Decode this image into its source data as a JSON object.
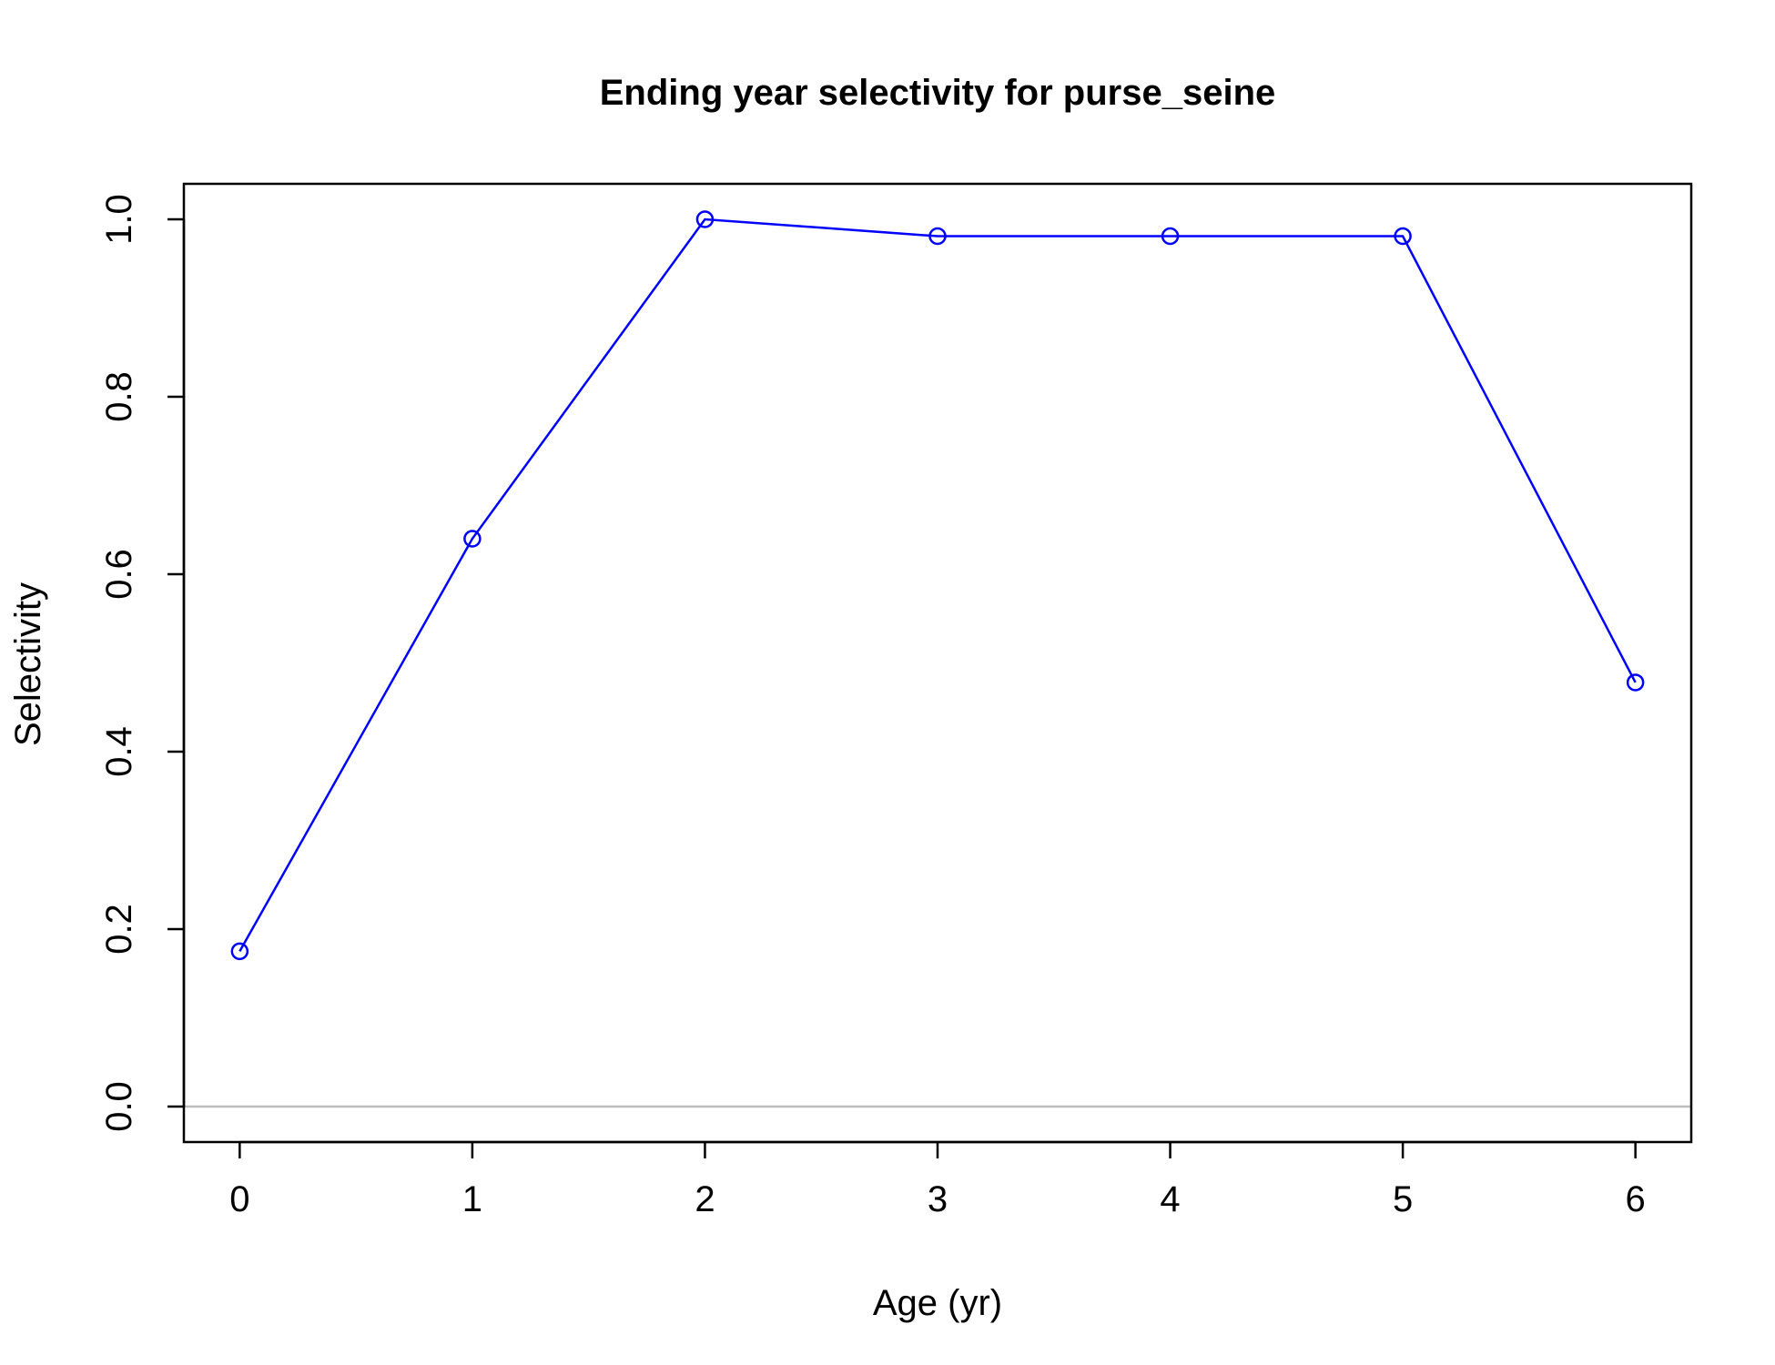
{
  "chart_data": {
    "type": "line",
    "title": "Ending year selectivity for purse_seine",
    "xlabel": "Age (yr)",
    "ylabel": "Selectivity",
    "x": [
      0,
      1,
      2,
      3,
      4,
      5,
      6
    ],
    "series": [
      {
        "values": [
          0.175,
          0.64,
          1.0,
          0.981,
          0.981,
          0.981,
          0.478
        ],
        "color": "#0000ff",
        "marker": "open-circle"
      }
    ],
    "x_ticks": [
      "0",
      "1",
      "2",
      "3",
      "4",
      "5",
      "6"
    ],
    "y_ticks": [
      "0.0",
      "0.2",
      "0.4",
      "0.6",
      "0.8",
      "1.0"
    ],
    "xlim": [
      -0.24,
      6.24
    ],
    "ylim": [
      -0.04,
      1.04
    ],
    "reference_line": {
      "y": 0,
      "color": "#bebebe"
    },
    "grid": false,
    "legend": "none"
  }
}
